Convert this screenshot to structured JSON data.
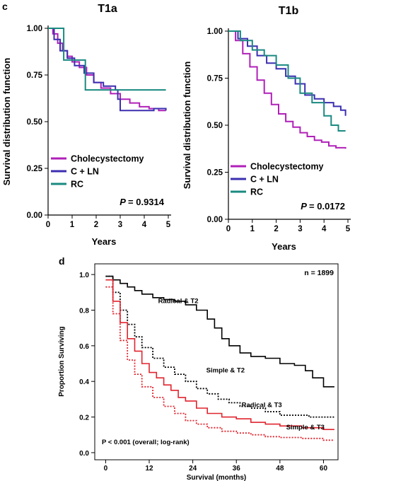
{
  "panel_c_label": "c",
  "panel_d_label": "d",
  "chart_data": [
    {
      "type": "line",
      "title": "T1a",
      "xlabel": "Years",
      "ylabel": "Survival distribution function",
      "xlim": [
        0,
        5
      ],
      "ylim": [
        0,
        1
      ],
      "x_ticks": [
        0,
        1,
        2,
        3,
        4,
        5
      ],
      "y_ticks": [
        0.0,
        0.25,
        0.5,
        0.75,
        1.0
      ],
      "y_tick_labels": [
        "0.00",
        "0.25",
        "0.50",
        "0.75",
        "1.00"
      ],
      "grid": false,
      "legend_position": "bottom-left",
      "annotation": {
        "p_label": "P",
        "p_value": "= 0.9314"
      },
      "series": [
        {
          "name": "Cholecystectomy",
          "color": "#b020b8",
          "points": [
            [
              0,
              1
            ],
            [
              0.2,
              0.97
            ],
            [
              0.4,
              0.92
            ],
            [
              0.6,
              0.88
            ],
            [
              0.8,
              0.85
            ],
            [
              1.0,
              0.82
            ],
            [
              1.3,
              0.79
            ],
            [
              1.6,
              0.75
            ],
            [
              1.9,
              0.71
            ],
            [
              2.2,
              0.68
            ],
            [
              2.6,
              0.65
            ],
            [
              3.0,
              0.62
            ],
            [
              3.4,
              0.6
            ],
            [
              3.8,
              0.58
            ],
            [
              4.2,
              0.57
            ],
            [
              4.6,
              0.56
            ],
            [
              4.9,
              0.56
            ]
          ]
        },
        {
          "name": "C + LN",
          "color": "#3b2fb0",
          "points": [
            [
              0,
              1
            ],
            [
              0.25,
              0.94
            ],
            [
              0.5,
              0.88
            ],
            [
              0.8,
              0.84
            ],
            [
              1.1,
              0.8
            ],
            [
              1.5,
              0.76
            ],
            [
              1.9,
              0.71
            ],
            [
              2.3,
              0.69
            ],
            [
              2.8,
              0.67
            ],
            [
              2.9,
              0.62
            ],
            [
              3.0,
              0.56
            ],
            [
              3.6,
              0.56
            ],
            [
              4.1,
              0.56
            ],
            [
              4.4,
              0.57
            ],
            [
              4.9,
              0.56
            ]
          ]
        },
        {
          "name": "RC",
          "color": "#1a8a80",
          "points": [
            [
              0,
              1
            ],
            [
              0.65,
              1
            ],
            [
              0.65,
              0.83
            ],
            [
              1.55,
              0.83
            ],
            [
              1.55,
              0.67
            ],
            [
              4.9,
              0.67
            ]
          ]
        }
      ]
    },
    {
      "type": "line",
      "title": "T1b",
      "xlabel": "Years",
      "ylabel": "Survival distribution function",
      "xlim": [
        0,
        5
      ],
      "ylim": [
        0,
        1
      ],
      "x_ticks": [
        0,
        1,
        2,
        3,
        4,
        5
      ],
      "y_ticks": [
        0.0,
        0.25,
        0.5,
        0.75,
        1.0
      ],
      "y_tick_labels": [
        "0.00",
        "0.25",
        "0.50",
        "0.75",
        "1.00"
      ],
      "grid": false,
      "legend_position": "bottom-left",
      "annotation": {
        "p_label": "P",
        "p_value": "= 0.0172"
      },
      "series": [
        {
          "name": "Cholecystectomy",
          "color": "#b020b8",
          "points": [
            [
              0,
              1
            ],
            [
              0.3,
              0.95
            ],
            [
              0.6,
              0.88
            ],
            [
              0.9,
              0.81
            ],
            [
              1.2,
              0.74
            ],
            [
              1.5,
              0.67
            ],
            [
              1.8,
              0.61
            ],
            [
              2.1,
              0.56
            ],
            [
              2.4,
              0.52
            ],
            [
              2.7,
              0.49
            ],
            [
              3.0,
              0.46
            ],
            [
              3.3,
              0.44
            ],
            [
              3.6,
              0.42
            ],
            [
              3.9,
              0.41
            ],
            [
              4.2,
              0.39
            ],
            [
              4.5,
              0.38
            ],
            [
              4.9,
              0.375
            ]
          ]
        },
        {
          "name": "C + LN",
          "color": "#3b2fb0",
          "points": [
            [
              0,
              1
            ],
            [
              0.4,
              0.96
            ],
            [
              0.8,
              0.92
            ],
            [
              1.2,
              0.87
            ],
            [
              1.6,
              0.83
            ],
            [
              2.0,
              0.8
            ],
            [
              2.4,
              0.76
            ],
            [
              2.8,
              0.72
            ],
            [
              3.2,
              0.66
            ],
            [
              3.6,
              0.64
            ],
            [
              4.0,
              0.62
            ],
            [
              4.4,
              0.6
            ],
            [
              4.7,
              0.58
            ],
            [
              4.9,
              0.55
            ]
          ]
        },
        {
          "name": "RC",
          "color": "#1a8a80",
          "points": [
            [
              0,
              1
            ],
            [
              0.5,
              0.95
            ],
            [
              1.0,
              0.9
            ],
            [
              1.5,
              0.87
            ],
            [
              2.0,
              0.82
            ],
            [
              2.5,
              0.75
            ],
            [
              3.0,
              0.67
            ],
            [
              3.5,
              0.62
            ],
            [
              4.0,
              0.55
            ],
            [
              4.3,
              0.5
            ],
            [
              4.6,
              0.47
            ],
            [
              4.9,
              0.47
            ]
          ]
        }
      ]
    },
    {
      "type": "line",
      "title": "",
      "xlabel": "Survival (months)",
      "ylabel": "Proportion Surviving",
      "xlim": [
        -3,
        64
      ],
      "ylim": [
        -0.04,
        1.06
      ],
      "x_ticks": [
        0,
        12,
        24,
        36,
        48,
        60
      ],
      "y_ticks": [
        0.0,
        0.2,
        0.4,
        0.6,
        0.8,
        1.0
      ],
      "y_tick_labels": [
        "0.0",
        "0.2",
        "0.4",
        "0.6",
        "0.8",
        "1.0"
      ],
      "grid": false,
      "annotation": {
        "n_label": "n = 1899",
        "p_text": "P < 0.001 (overall; log-rank)"
      },
      "series": [
        {
          "name": "Radical & T2",
          "color": "#000000",
          "style": "solid",
          "label_at": [
            20,
            0.84
          ],
          "points": [
            [
              0,
              0.99
            ],
            [
              2,
              0.97
            ],
            [
              4,
              0.95
            ],
            [
              6,
              0.93
            ],
            [
              8,
              0.91
            ],
            [
              10,
              0.89
            ],
            [
              13,
              0.87
            ],
            [
              16,
              0.86
            ],
            [
              19,
              0.85
            ],
            [
              22,
              0.83
            ],
            [
              25,
              0.8
            ],
            [
              28,
              0.75
            ],
            [
              30,
              0.7
            ],
            [
              32,
              0.64
            ],
            [
              34,
              0.6
            ],
            [
              37,
              0.56
            ],
            [
              40,
              0.54
            ],
            [
              44,
              0.53
            ],
            [
              48,
              0.5
            ],
            [
              52,
              0.49
            ],
            [
              55,
              0.46
            ],
            [
              57,
              0.42
            ],
            [
              60,
              0.37
            ],
            [
              63,
              0.37
            ]
          ]
        },
        {
          "name": "Simple & T2",
          "color": "#000000",
          "style": "dotted",
          "label_at": [
            33,
            0.45
          ],
          "points": [
            [
              0,
              0.99
            ],
            [
              2,
              0.9
            ],
            [
              4,
              0.8
            ],
            [
              6,
              0.72
            ],
            [
              8,
              0.65
            ],
            [
              10,
              0.59
            ],
            [
              13,
              0.53
            ],
            [
              16,
              0.48
            ],
            [
              19,
              0.44
            ],
            [
              22,
              0.4
            ],
            [
              25,
              0.36
            ],
            [
              28,
              0.33
            ],
            [
              31,
              0.3
            ],
            [
              34,
              0.28
            ],
            [
              37,
              0.26
            ],
            [
              40,
              0.25
            ],
            [
              44,
              0.23
            ],
            [
              48,
              0.21
            ],
            [
              52,
              0.21
            ],
            [
              56,
              0.2
            ],
            [
              60,
              0.2
            ],
            [
              63,
              0.2
            ]
          ]
        },
        {
          "name": "Radical & T3",
          "color": "#e0242e",
          "style": "solid",
          "label_at": [
            43,
            0.255
          ],
          "points": [
            [
              0,
              0.97
            ],
            [
              2,
              0.85
            ],
            [
              4,
              0.73
            ],
            [
              6,
              0.64
            ],
            [
              8,
              0.57
            ],
            [
              10,
              0.5
            ],
            [
              12,
              0.45
            ],
            [
              14,
              0.42
            ],
            [
              16,
              0.38
            ],
            [
              18,
              0.35
            ],
            [
              20,
              0.31
            ],
            [
              22,
              0.29
            ],
            [
              25,
              0.25
            ],
            [
              28,
              0.22
            ],
            [
              32,
              0.2
            ],
            [
              36,
              0.19
            ],
            [
              40,
              0.17
            ],
            [
              44,
              0.16
            ],
            [
              48,
              0.15
            ],
            [
              54,
              0.14
            ],
            [
              60,
              0.13
            ],
            [
              63,
              0.13
            ]
          ]
        },
        {
          "name": "Simple & T3",
          "color": "#e0242e",
          "style": "dotted",
          "label_at": [
            55,
            0.13
          ],
          "points": [
            [
              0,
              0.93
            ],
            [
              2,
              0.78
            ],
            [
              4,
              0.63
            ],
            [
              6,
              0.52
            ],
            [
              8,
              0.44
            ],
            [
              10,
              0.37
            ],
            [
              13,
              0.31
            ],
            [
              16,
              0.26
            ],
            [
              19,
              0.22
            ],
            [
              22,
              0.18
            ],
            [
              25,
              0.16
            ],
            [
              28,
              0.14
            ],
            [
              32,
              0.12
            ],
            [
              36,
              0.11
            ],
            [
              40,
              0.1
            ],
            [
              44,
              0.09
            ],
            [
              48,
              0.085
            ],
            [
              54,
              0.08
            ],
            [
              60,
              0.07
            ],
            [
              63,
              0.07
            ]
          ]
        }
      ]
    }
  ]
}
